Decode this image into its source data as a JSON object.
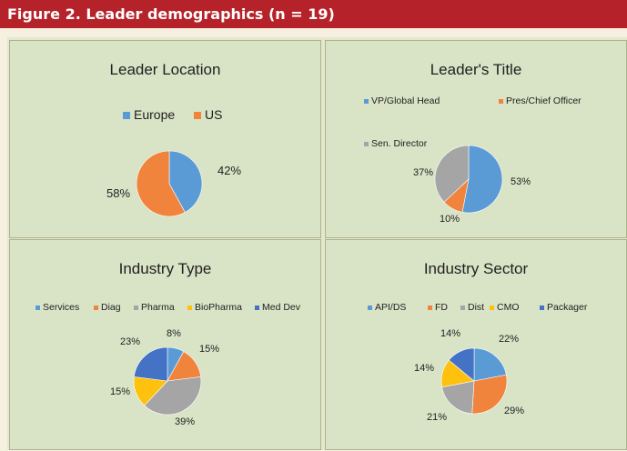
{
  "figure_title": "Figure 2. Leader demographics (n = 19)",
  "colors": {
    "header_bg": "#b5222a",
    "panel_bg": "#d9e3c6"
  },
  "chart_data": [
    {
      "type": "pie",
      "title": "Leader Location",
      "categories": [
        "Europe",
        "US"
      ],
      "values": [
        42,
        58
      ],
      "value_labels": [
        "42%",
        "58%"
      ],
      "colors": [
        "#5b9bd5",
        "#f0843d"
      ],
      "legend": "top"
    },
    {
      "type": "pie",
      "title": "Leader's Title",
      "categories": [
        "VP/Global Head",
        "Pres/Chief Officer",
        "Sen. Director"
      ],
      "values": [
        53,
        10,
        37
      ],
      "value_labels": [
        "53%",
        "10%",
        "37%"
      ],
      "colors": [
        "#5b9bd5",
        "#f0843d",
        "#a5a5a5"
      ],
      "legend": "top"
    },
    {
      "type": "pie",
      "title": "Industry Type",
      "categories": [
        "Services",
        "Diag",
        "Pharma",
        "BioPharma",
        "Med Dev"
      ],
      "values": [
        8,
        15,
        39,
        15,
        23
      ],
      "value_labels": [
        "8%",
        "15%",
        "39%",
        "15%",
        "23%"
      ],
      "colors": [
        "#5b9bd5",
        "#f0843d",
        "#a5a5a5",
        "#fdc10e",
        "#4472c4"
      ],
      "legend": "top"
    },
    {
      "type": "pie",
      "title": "Industry Sector",
      "categories": [
        "API/DS",
        "FD",
        "Dist",
        "CMO",
        "Packager"
      ],
      "values": [
        22,
        29,
        21,
        14,
        14
      ],
      "value_labels": [
        "22%",
        "29%",
        "21%",
        "14%",
        "14%"
      ],
      "colors": [
        "#5b9bd5",
        "#f0843d",
        "#a5a5a5",
        "#fdc10e",
        "#4472c4"
      ],
      "legend": "top"
    }
  ]
}
